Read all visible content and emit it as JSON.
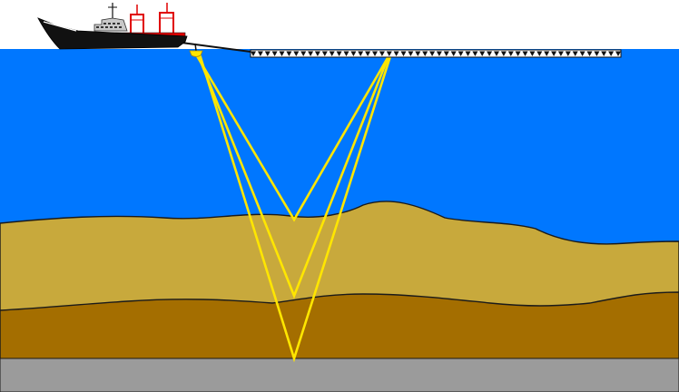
{
  "colors": {
    "sky": "#ffffff",
    "water": "#0077ff",
    "sediment_upper": "#c8a93c",
    "sediment_lower": "#a46e00",
    "bedrock": "#9b9b9b",
    "ray": "#ffe600",
    "ship_hull": "#111111",
    "ship_stripe": "#e00000",
    "ship_superstructure": "#c8c8c8",
    "streamer": "#ffffff"
  },
  "scene": {
    "source_icon": "airgun-source-icon",
    "receiver_icon": "hydrophone-receiver-icon",
    "ship_icon": "survey-ship-icon",
    "reflectors": [
      "seabed",
      "upper-layer-boundary",
      "bedrock-boundary"
    ]
  }
}
